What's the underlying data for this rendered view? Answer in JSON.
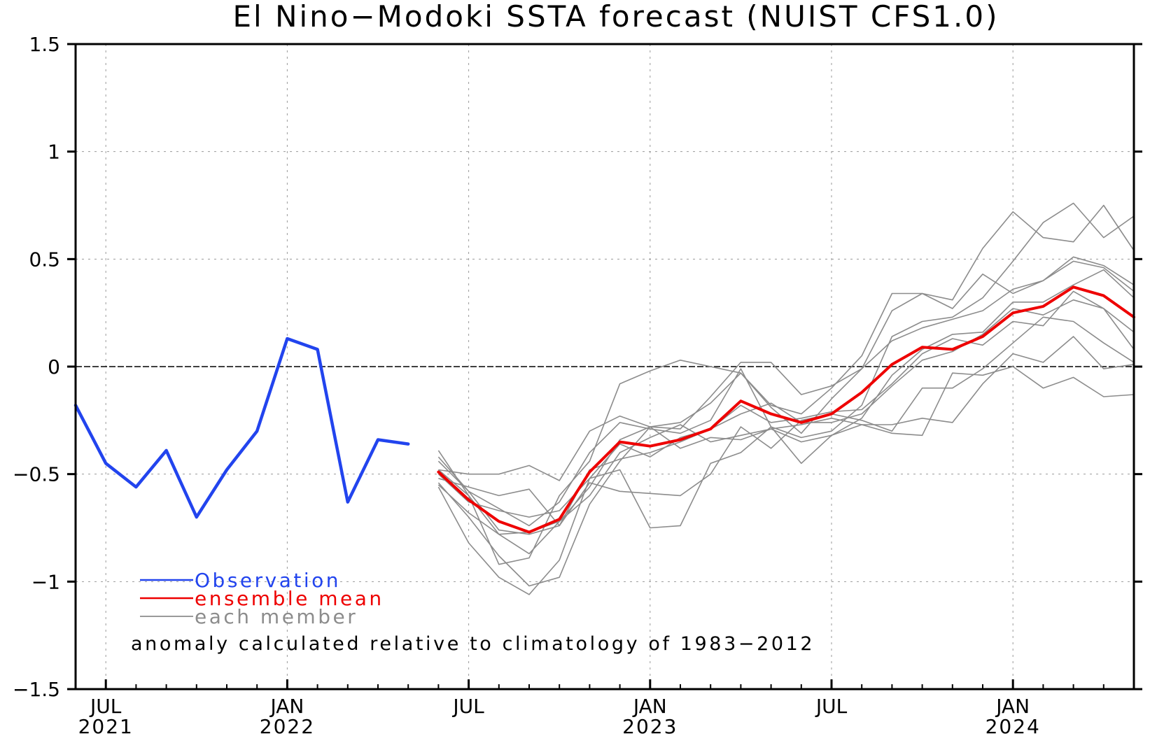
{
  "chart_data": {
    "type": "line",
    "title": "El Nino−Modoki SSTA forecast (NUIST CFS1.0)",
    "xlabel": "",
    "ylabel": "",
    "ylim": [
      -1.5,
      1.5
    ],
    "y_ticks": [
      {
        "value": 1.5,
        "label": "1.5"
      },
      {
        "value": 1.0,
        "label": "1"
      },
      {
        "value": 0.5,
        "label": "0.5"
      },
      {
        "value": 0.0,
        "label": "0"
      },
      {
        "value": -0.5,
        "label": "−0.5"
      },
      {
        "value": -1.0,
        "label": "−1"
      },
      {
        "value": -1.5,
        "label": "−1.5"
      }
    ],
    "x_range": [
      "2021-06",
      "2024-05"
    ],
    "x_ticks": [
      {
        "date": "2021-07",
        "month": "JUL",
        "year": "2021"
      },
      {
        "date": "2022-01",
        "month": "JAN",
        "year": "2022"
      },
      {
        "date": "2022-07",
        "month": "JUL",
        "year": ""
      },
      {
        "date": "2023-01",
        "month": "JAN",
        "year": "2023"
      },
      {
        "date": "2023-07",
        "month": "JUL",
        "year": ""
      },
      {
        "date": "2024-01",
        "month": "JAN",
        "year": "2024"
      }
    ],
    "grid": "dashed",
    "zero_line": true,
    "colors": {
      "observation": "#2244ee",
      "ensemble_mean": "#ee0000",
      "member": "#8c8c8c"
    },
    "series": [
      {
        "name": "Observation",
        "role": "observation",
        "dates": [
          "2021-06",
          "2021-07",
          "2021-08",
          "2021-09",
          "2021-10",
          "2021-11",
          "2021-12",
          "2022-01",
          "2022-02",
          "2022-03",
          "2022-04",
          "2022-05"
        ],
        "values": [
          -0.18,
          -0.45,
          -0.56,
          -0.39,
          -0.7,
          -0.48,
          -0.3,
          0.13,
          0.08,
          -0.63,
          -0.34,
          -0.36
        ]
      },
      {
        "name": "ensemble mean",
        "role": "ensemble_mean",
        "dates": [
          "2022-06",
          "2022-07",
          "2022-08",
          "2022-09",
          "2022-10",
          "2022-11",
          "2022-12",
          "2023-01",
          "2023-02",
          "2023-03",
          "2023-04",
          "2023-05",
          "2023-06",
          "2023-07",
          "2023-08",
          "2023-09",
          "2023-10",
          "2023-11",
          "2023-12",
          "2024-01",
          "2024-02",
          "2024-03",
          "2024-04",
          "2024-05"
        ],
        "values": [
          -0.49,
          -0.62,
          -0.72,
          -0.77,
          -0.71,
          -0.49,
          -0.35,
          -0.37,
          -0.34,
          -0.29,
          -0.16,
          -0.22,
          -0.26,
          -0.22,
          -0.12,
          0.01,
          0.09,
          0.08,
          0.14,
          0.25,
          0.28,
          0.37,
          0.33,
          0.23
        ]
      }
    ],
    "members": {
      "name": "each member",
      "dates": [
        "2022-06",
        "2022-07",
        "2022-08",
        "2022-09",
        "2022-10",
        "2022-11",
        "2022-12",
        "2023-01",
        "2023-02",
        "2023-03",
        "2023-04",
        "2023-05",
        "2023-06",
        "2023-07",
        "2023-08",
        "2023-09",
        "2023-10",
        "2023-11",
        "2023-12",
        "2024-01",
        "2024-02",
        "2024-03",
        "2024-04",
        "2024-05"
      ],
      "values": [
        [
          -0.39,
          -0.6,
          -0.92,
          -0.89,
          -0.6,
          -0.44,
          -0.08,
          -0.02,
          0.03,
          0.0,
          -0.03,
          -0.18,
          -0.22,
          -0.1,
          0.05,
          0.34,
          0.34,
          0.31,
          0.55,
          0.72,
          0.6,
          0.58,
          0.75,
          0.54
        ],
        [
          -0.56,
          -0.82,
          -0.98,
          -1.06,
          -0.9,
          -0.52,
          -0.48,
          -0.75,
          -0.74,
          -0.45,
          -0.4,
          -0.28,
          -0.33,
          -0.3,
          -0.18,
          0.14,
          0.21,
          0.23,
          0.32,
          0.49,
          0.67,
          0.76,
          0.6,
          0.7
        ],
        [
          -0.48,
          -0.5,
          -0.5,
          -0.46,
          -0.53,
          -0.3,
          -0.23,
          -0.28,
          -0.29,
          -0.14,
          0.02,
          0.02,
          -0.13,
          -0.09,
          -0.01,
          0.26,
          0.34,
          0.27,
          0.43,
          0.34,
          0.4,
          0.51,
          0.47,
          0.38
        ],
        [
          -0.54,
          -0.7,
          -0.88,
          -1.02,
          -0.98,
          -0.64,
          -0.44,
          -0.28,
          -0.26,
          -0.17,
          -0.03,
          -0.19,
          -0.31,
          -0.15,
          -0.01,
          0.12,
          0.18,
          0.22,
          0.26,
          0.36,
          0.4,
          0.49,
          0.46,
          0.35
        ],
        [
          -0.42,
          -0.58,
          -0.66,
          -0.74,
          -0.63,
          -0.4,
          -0.26,
          -0.29,
          -0.31,
          -0.25,
          -0.01,
          -0.28,
          -0.45,
          -0.32,
          -0.24,
          -0.04,
          0.08,
          0.15,
          0.16,
          0.3,
          0.3,
          0.38,
          0.45,
          0.32
        ],
        [
          -0.5,
          -0.63,
          -0.67,
          -0.7,
          -0.67,
          -0.52,
          -0.36,
          -0.42,
          -0.33,
          -0.29,
          -0.22,
          -0.17,
          -0.26,
          -0.26,
          -0.22,
          -0.09,
          0.03,
          0.07,
          0.15,
          0.27,
          0.24,
          0.31,
          0.27,
          0.08
        ],
        [
          -0.44,
          -0.58,
          -0.76,
          -0.78,
          -0.74,
          -0.48,
          -0.43,
          -0.4,
          -0.35,
          -0.29,
          -0.18,
          -0.26,
          -0.24,
          -0.21,
          -0.2,
          -0.08,
          0.06,
          0.13,
          0.1,
          0.21,
          0.19,
          0.35,
          0.27,
          0.16
        ],
        [
          -0.52,
          -0.56,
          -0.6,
          -0.57,
          -0.74,
          -0.54,
          -0.58,
          -0.59,
          -0.6,
          -0.5,
          -0.28,
          -0.38,
          -0.25,
          -0.22,
          -0.25,
          -0.3,
          -0.1,
          -0.1,
          -0.01,
          0.11,
          0.23,
          0.21,
          0.11,
          0.02
        ],
        [
          -0.55,
          -0.68,
          -0.78,
          -0.87,
          -0.72,
          -0.6,
          -0.4,
          -0.33,
          -0.27,
          -0.35,
          -0.32,
          -0.29,
          -0.35,
          -0.32,
          -0.27,
          -0.27,
          -0.24,
          -0.26,
          -0.08,
          0.06,
          0.02,
          0.14,
          -0.01,
          0.01
        ],
        [
          -0.48,
          -0.6,
          -0.78,
          -0.77,
          -0.72,
          -0.56,
          -0.34,
          -0.28,
          -0.38,
          -0.33,
          -0.34,
          -0.29,
          -0.27,
          -0.24,
          -0.27,
          -0.31,
          -0.32,
          -0.03,
          -0.04,
          0.0,
          -0.1,
          -0.05,
          -0.14,
          -0.13
        ]
      ]
    },
    "legend": {
      "placement": "bottom-left",
      "entries": [
        {
          "label": "Observation",
          "role": "observation"
        },
        {
          "label": "ensemble mean",
          "role": "ensemble_mean"
        },
        {
          "label": "each member",
          "role": "member"
        }
      ]
    },
    "annotation": "anomaly calculated relative to climatology of 1983−2012"
  }
}
